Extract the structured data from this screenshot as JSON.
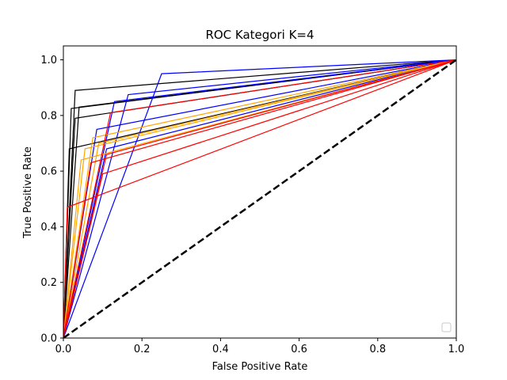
{
  "chart_data": {
    "type": "line",
    "title": "ROC Kategori K=4",
    "xlabel": "False Positive Rate",
    "ylabel": "True Positive Rate",
    "xlim": [
      0.0,
      1.0
    ],
    "ylim": [
      0.0,
      1.05
    ],
    "x_ticks": [
      "0.0",
      "0.2",
      "0.4",
      "0.6",
      "0.8",
      "1.0"
    ],
    "y_ticks": [
      "0.0",
      "0.2",
      "0.4",
      "0.6",
      "0.8",
      "1.0"
    ],
    "grid": false,
    "legend": {
      "placement": "lower right",
      "entries": []
    },
    "colors": {
      "blue": "#0000ff",
      "orange": "#ffa500",
      "red": "#ff0000",
      "black": "#000000"
    },
    "diagonal": {
      "x": [
        0.0,
        1.0
      ],
      "y": [
        0.0,
        1.0
      ],
      "color": "#000000",
      "style": "dashed"
    },
    "series": [
      {
        "color": "#000000",
        "x": [
          0,
          0.03,
          1
        ],
        "y": [
          0,
          0.89,
          1
        ]
      },
      {
        "color": "#000000",
        "x": [
          0,
          0.02,
          1
        ],
        "y": [
          0,
          0.825,
          1
        ]
      },
      {
        "color": "#000000",
        "x": [
          0,
          0.04,
          1
        ],
        "y": [
          0,
          0.83,
          1
        ]
      },
      {
        "color": "#000000",
        "x": [
          0,
          0.03,
          1
        ],
        "y": [
          0,
          0.79,
          1
        ]
      },
      {
        "color": "#000000",
        "x": [
          0,
          0.015,
          1
        ],
        "y": [
          0,
          0.68,
          1
        ]
      },
      {
        "color": "#0000ff",
        "x": [
          0,
          0.25,
          1
        ],
        "y": [
          0,
          0.95,
          1
        ]
      },
      {
        "color": "#0000ff",
        "x": [
          0,
          0.165,
          1
        ],
        "y": [
          0,
          0.875,
          1
        ]
      },
      {
        "color": "#0000ff",
        "x": [
          0,
          0.13,
          1
        ],
        "y": [
          0,
          0.85,
          1
        ]
      },
      {
        "color": "#0000ff",
        "x": [
          0,
          0.085,
          1
        ],
        "y": [
          0,
          0.75,
          1
        ]
      },
      {
        "color": "#0000ff",
        "x": [
          0,
          0.11,
          1
        ],
        "y": [
          0,
          0.68,
          1
        ]
      },
      {
        "color": "#ffa500",
        "x": [
          0,
          0.075,
          1
        ],
        "y": [
          0,
          0.72,
          1
        ]
      },
      {
        "color": "#ffa500",
        "x": [
          0,
          0.055,
          1
        ],
        "y": [
          0,
          0.68,
          1
        ]
      },
      {
        "color": "#ffa500",
        "x": [
          0,
          0.045,
          1
        ],
        "y": [
          0,
          0.64,
          1
        ]
      },
      {
        "color": "#ffa500",
        "x": [
          0,
          0.09,
          1
        ],
        "y": [
          0,
          0.7,
          1
        ]
      },
      {
        "color": "#ff0000",
        "x": [
          0,
          0.12,
          1
        ],
        "y": [
          0,
          0.81,
          1
        ]
      },
      {
        "color": "#ff0000",
        "x": [
          0,
          0.11,
          1
        ],
        "y": [
          0,
          0.66,
          1
        ]
      },
      {
        "color": "#ff0000",
        "x": [
          0,
          0.1,
          1
        ],
        "y": [
          0,
          0.59,
          1
        ]
      },
      {
        "color": "#ff0000",
        "x": [
          0,
          0.07,
          1
        ],
        "y": [
          0,
          0.63,
          1
        ]
      },
      {
        "color": "#ff0000",
        "x": [
          0,
          0.01,
          1
        ],
        "y": [
          0,
          0.47,
          1
        ]
      }
    ]
  }
}
